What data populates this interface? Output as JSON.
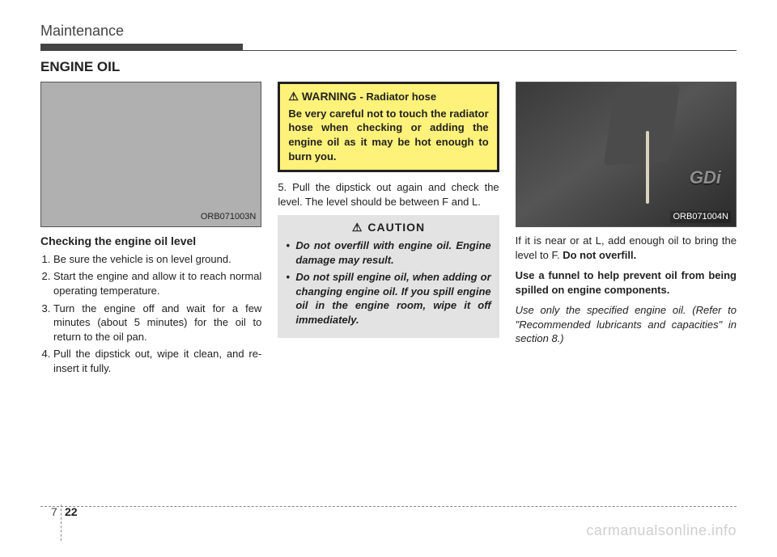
{
  "header": {
    "title": "Maintenance"
  },
  "section_title": "ENGINE OIL",
  "col1": {
    "figure_code": "ORB071003N",
    "subheading": "Checking the engine oil level",
    "steps": [
      "Be sure the vehicle is on level ground.",
      "Start the engine and allow it to reach normal operating temperature.",
      "Turn the engine off and wait for a few minutes (about 5 minutes) for the oil to return to the oil pan.",
      "Pull the dipstick out, wipe it clean, and re-insert it fully."
    ]
  },
  "col2": {
    "warning_label": "WARNING",
    "warning_sub": "- Radiator hose",
    "warning_body": "Be very careful not to touch the radiator hose when checking or adding the engine oil as it may be hot enough to burn you.",
    "step5": "5. Pull the dipstick out again and check the level. The level should be between F and L.",
    "caution_label": "CAUTION",
    "caution_items": [
      "Do not overfill with engine oil. Engine damage may result.",
      "Do not spill engine oil, when adding or changing engine oil. If you spill engine oil in the engine room, wipe it off immediately."
    ]
  },
  "col3": {
    "figure_code": "ORB071004N",
    "gdi_text": "GDi",
    "para1_a": "If it is near or at L, add enough oil to bring the level to F. ",
    "para1_b": "Do not overfill.",
    "para2": "Use a funnel to help prevent oil from being spilled on engine components.",
    "para3": "Use only the specified engine oil. (Refer to \"Recommended lubricants and capacities\" in section 8.)"
  },
  "footer": {
    "section_no": "7",
    "page_no": "22",
    "watermark": "carmanualsonline.info"
  },
  "colors": {
    "warning_bg": "#fff27a",
    "caution_bg": "#e3e3e3",
    "figure_bg": "#b0b0b0",
    "watermark_color": "#cfcfcf"
  }
}
